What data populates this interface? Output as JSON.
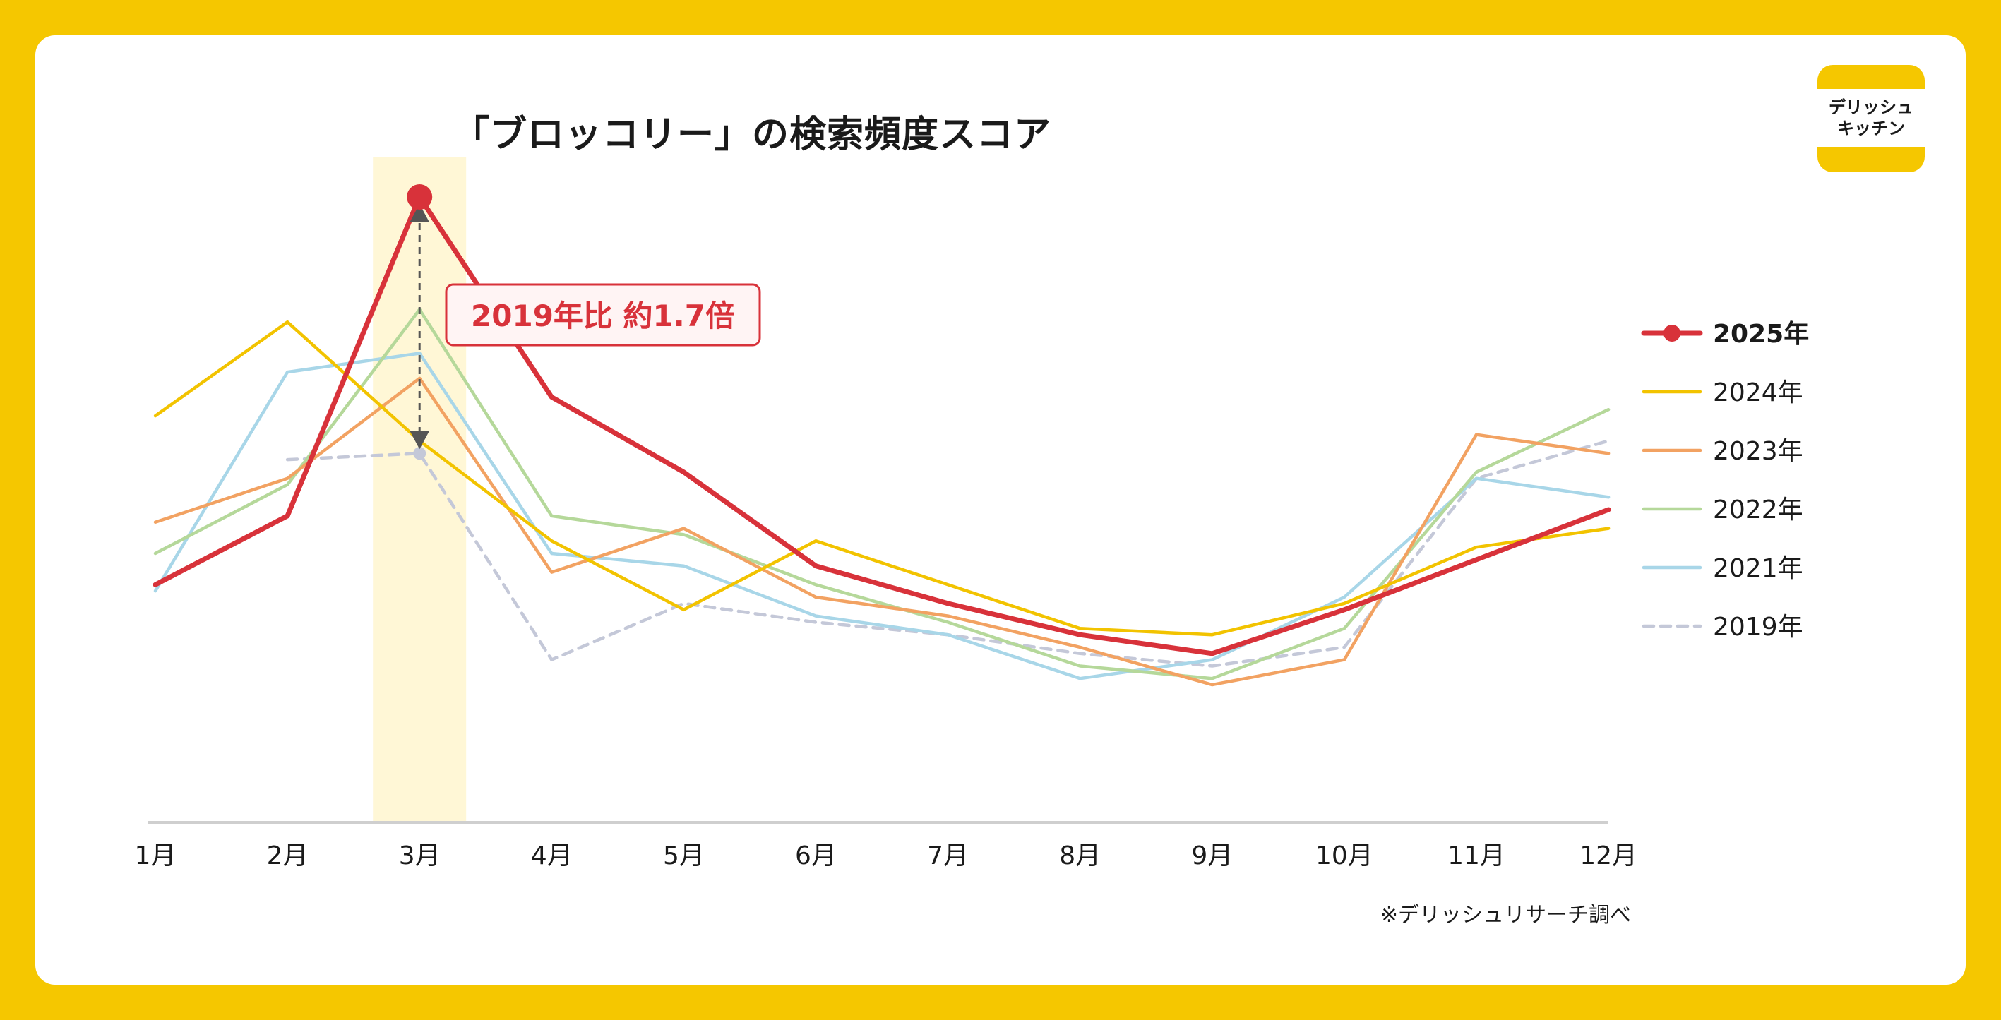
{
  "brand": {
    "logo_line1": "デリッシュ",
    "logo_line2": "キッチン"
  },
  "colors": {
    "frame": "#F5C700",
    "highlight_band": "#FFF7D6",
    "callout_text": "#D8323A"
  },
  "chart_data": {
    "type": "line",
    "title": "「ブロッコリー」の検索頻度スコア",
    "xlabel": "",
    "ylabel": "",
    "categories": [
      "1月",
      "2月",
      "3月",
      "4月",
      "5月",
      "6月",
      "7月",
      "8月",
      "9月",
      "10月",
      "11月",
      "12月"
    ],
    "highlighted_category": "3月",
    "ylim": [
      0,
      100
    ],
    "grid": false,
    "legend_position": "right",
    "series": [
      {
        "name": "2025年",
        "color": "#D8323A",
        "style": "solid-bold",
        "values": [
          38,
          49,
          100,
          68,
          56,
          41,
          35,
          30,
          27,
          34,
          42,
          50
        ]
      },
      {
        "name": "2024年",
        "color": "#F2C300",
        "style": "solid",
        "values": [
          65,
          80,
          61,
          45,
          34,
          45,
          38,
          31,
          30,
          35,
          44,
          47
        ]
      },
      {
        "name": "2023年",
        "color": "#F2A262",
        "style": "solid",
        "values": [
          48,
          55,
          71,
          40,
          47,
          36,
          33,
          28,
          22,
          26,
          62,
          59
        ]
      },
      {
        "name": "2022年",
        "color": "#B5D89A",
        "style": "solid",
        "values": [
          43,
          54,
          82,
          49,
          46,
          38,
          32,
          25,
          23,
          31,
          56,
          66
        ]
      },
      {
        "name": "2021年",
        "color": "#A8D6E8",
        "style": "solid",
        "values": [
          37,
          72,
          75,
          43,
          41,
          33,
          30,
          23,
          26,
          36,
          55,
          52
        ]
      },
      {
        "name": "2019年",
        "color": "#C4C8D8",
        "style": "dashed",
        "values": [
          null,
          58,
          59,
          26,
          35,
          32,
          30,
          27,
          25,
          28,
          55,
          61
        ]
      }
    ],
    "annotation": {
      "text": "2019年比 約1.7倍",
      "from_series": "2019年",
      "to_series": "2025年",
      "category": "3月"
    },
    "note": "※デリッシュリサーチ調べ"
  }
}
